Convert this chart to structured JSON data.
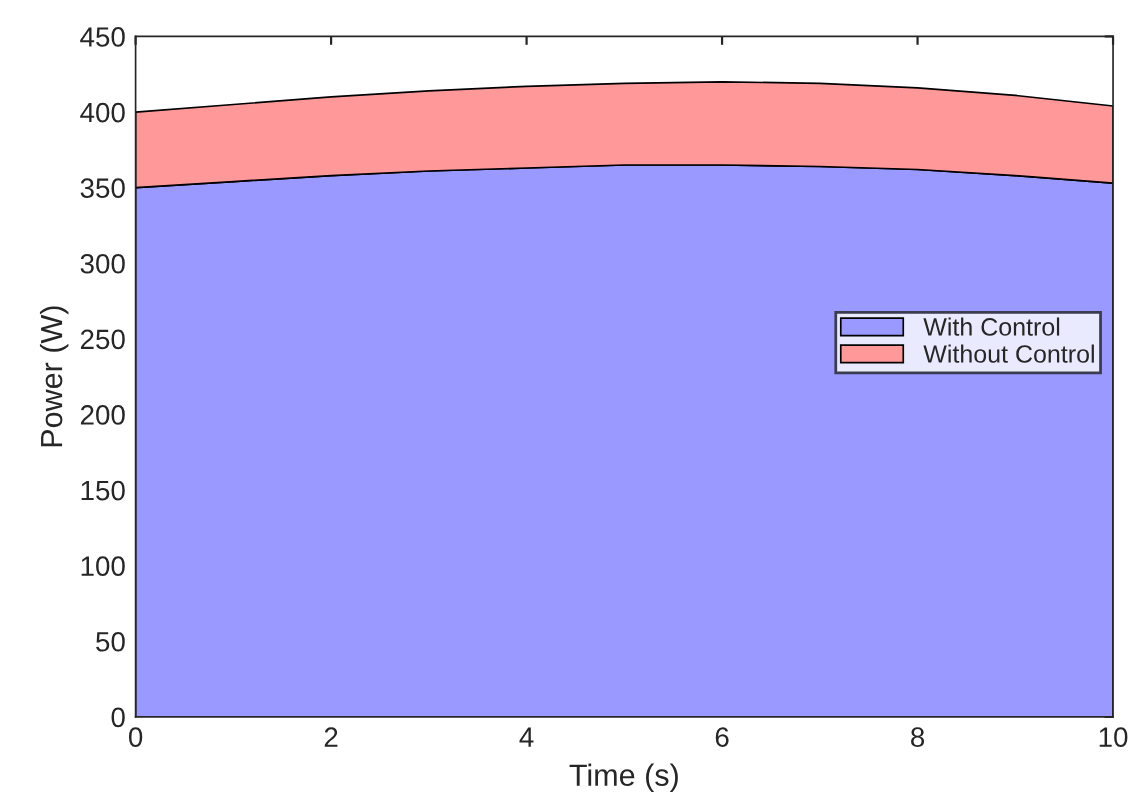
{
  "chart_data": {
    "type": "area",
    "stacked": true,
    "xlabel": "Time (s)",
    "ylabel": "Power (W)",
    "x": [
      0,
      1,
      2,
      3,
      4,
      5,
      6,
      7,
      8,
      9,
      10
    ],
    "series": [
      {
        "name": "With Control",
        "color": "#9999ff",
        "values": [
          350,
          354,
          358,
          361,
          363,
          365,
          365,
          364,
          362,
          358,
          353
        ]
      },
      {
        "name": "Without Control",
        "color": "#ff9999",
        "values": [
          50,
          51,
          52,
          53,
          54,
          54,
          55,
          55,
          54,
          53,
          51
        ]
      }
    ],
    "xlim": [
      0,
      10
    ],
    "xticks": [
      0,
      2,
      4,
      6,
      8,
      10
    ],
    "ylim": [
      0,
      450
    ],
    "yticks": [
      0,
      50,
      100,
      150,
      200,
      250,
      300,
      350,
      400,
      450
    ],
    "grid": false,
    "legend": "right"
  }
}
